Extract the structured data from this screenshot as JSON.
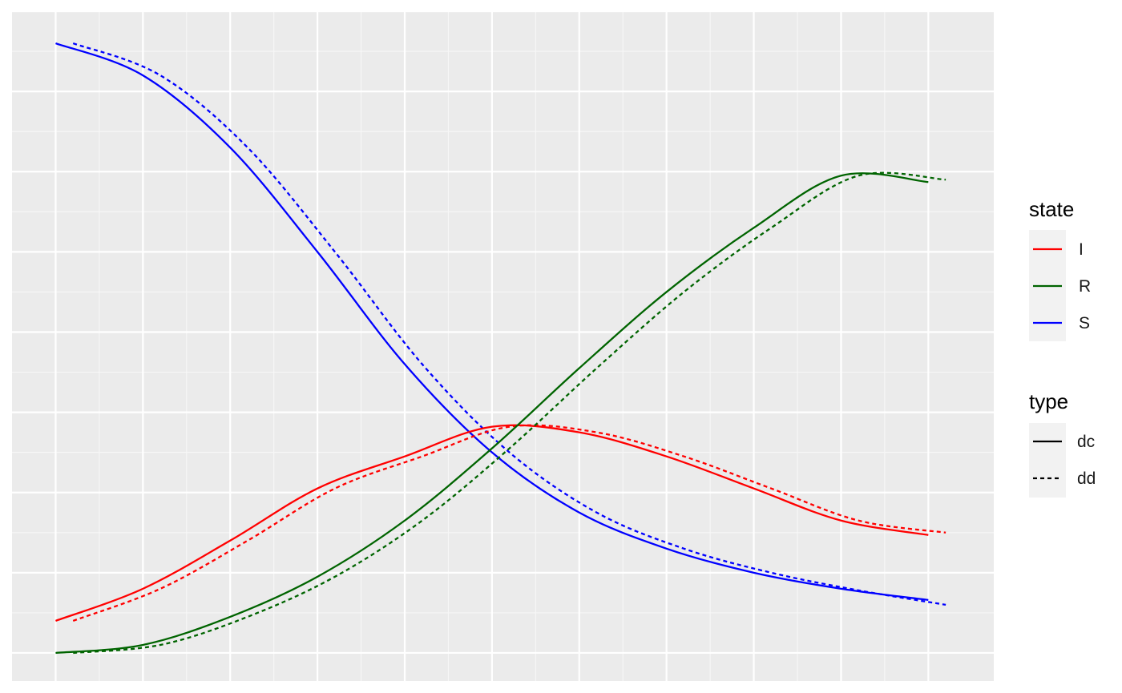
{
  "chart_data": {
    "type": "line",
    "title": "",
    "xlabel": "",
    "ylabel": "",
    "grid": true,
    "legend_placement": "right",
    "x_breaks": [
      0,
      2,
      4,
      6,
      8,
      10,
      12,
      14,
      16,
      18,
      20
    ],
    "y_breaks": [
      0,
      1,
      2,
      3,
      4,
      5,
      6,
      7,
      8
    ],
    "xlim": [
      -1,
      21.5
    ],
    "ylim": [
      -0.35,
      8.0
    ],
    "colors": {
      "I": "#ff0000",
      "R": "#006400",
      "S": "#0000ff"
    },
    "legend": {
      "state": {
        "title": "state",
        "items": [
          "I",
          "R",
          "S"
        ]
      },
      "type": {
        "title": "type",
        "items": [
          "dc",
          "dd"
        ]
      }
    },
    "series": [
      {
        "state": "S",
        "type": "dc",
        "x": [
          0,
          2,
          4,
          6,
          8,
          10,
          12,
          14,
          16,
          18,
          20
        ],
        "y": [
          7.6,
          7.2,
          6.3,
          5.0,
          3.6,
          2.5,
          1.75,
          1.3,
          1.0,
          0.8,
          0.66
        ]
      },
      {
        "state": "S",
        "type": "dd",
        "x": [
          0.4,
          2.4,
          4.4,
          6.4,
          8.4,
          10.4,
          12.4,
          14.4,
          16.4,
          18.4,
          20.4
        ],
        "y": [
          7.6,
          7.2,
          6.3,
          5.0,
          3.6,
          2.5,
          1.75,
          1.3,
          1.0,
          0.78,
          0.6
        ]
      },
      {
        "state": "I",
        "type": "dc",
        "x": [
          0,
          2,
          4,
          6,
          8,
          10,
          12,
          14,
          16,
          18,
          20
        ],
        "y": [
          0.4,
          0.8,
          1.4,
          2.05,
          2.45,
          2.82,
          2.75,
          2.45,
          2.05,
          1.65,
          1.47
        ]
      },
      {
        "state": "I",
        "type": "dd",
        "x": [
          0.4,
          2.4,
          4.4,
          6.4,
          8.4,
          10.4,
          12.4,
          14.4,
          16.4,
          18.4,
          20.4
        ],
        "y": [
          0.4,
          0.8,
          1.4,
          2.05,
          2.45,
          2.82,
          2.75,
          2.45,
          2.05,
          1.65,
          1.5
        ]
      },
      {
        "state": "R",
        "type": "dc",
        "x": [
          0,
          2,
          4,
          6,
          8,
          10,
          12,
          14,
          16,
          18,
          20
        ],
        "y": [
          0,
          0.1,
          0.45,
          0.95,
          1.65,
          2.55,
          3.55,
          4.5,
          5.3,
          5.95,
          5.87
        ]
      },
      {
        "state": "R",
        "type": "dd",
        "x": [
          0.4,
          2.4,
          4.4,
          6.4,
          8.4,
          10.4,
          12.4,
          14.4,
          16.4,
          18.4,
          20.4
        ],
        "y": [
          0,
          0.1,
          0.45,
          0.95,
          1.65,
          2.55,
          3.55,
          4.5,
          5.3,
          5.95,
          5.9
        ]
      }
    ]
  }
}
